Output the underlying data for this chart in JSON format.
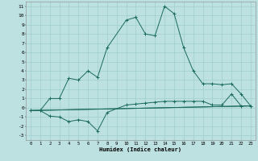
{
  "xlabel": "Humidex (Indice chaleur)",
  "bg_color": "#bde0e0",
  "grid_color": "#9ecece",
  "line_color": "#1a6b5a",
  "xlim": [
    -0.5,
    23.5
  ],
  "ylim": [
    -3.5,
    11.5
  ],
  "xticks": [
    0,
    1,
    2,
    3,
    4,
    5,
    6,
    7,
    8,
    9,
    10,
    11,
    12,
    13,
    14,
    15,
    16,
    17,
    18,
    19,
    20,
    21,
    22,
    23
  ],
  "yticks": [
    -3,
    -2,
    -1,
    0,
    1,
    2,
    3,
    4,
    5,
    6,
    7,
    8,
    9,
    10,
    11
  ],
  "curve1_x": [
    0,
    1,
    2,
    3,
    4,
    5,
    6,
    7,
    8,
    10,
    11,
    12,
    13,
    14,
    15,
    16,
    17,
    18,
    19,
    20,
    21,
    22,
    23
  ],
  "curve1_y": [
    -0.3,
    -0.3,
    1.0,
    1.0,
    3.2,
    3.0,
    4.0,
    3.3,
    6.5,
    9.5,
    9.8,
    8.0,
    7.8,
    11.0,
    10.2,
    6.5,
    4.0,
    2.6,
    2.6,
    2.5,
    2.6,
    1.5,
    0.2
  ],
  "curve2_x": [
    0,
    1,
    2,
    3,
    4,
    5,
    6,
    7,
    8,
    10,
    11,
    12,
    13,
    14,
    15,
    16,
    17,
    18,
    19,
    20,
    21,
    22,
    23
  ],
  "curve2_y": [
    -0.3,
    -0.3,
    -0.9,
    -1.0,
    -1.5,
    -1.3,
    -1.5,
    -2.5,
    -0.5,
    0.3,
    0.4,
    0.5,
    0.6,
    0.7,
    0.7,
    0.7,
    0.7,
    0.7,
    0.3,
    0.3,
    1.5,
    0.2,
    0.2
  ],
  "curve3_x": [
    0,
    23
  ],
  "curve3_y": [
    -0.3,
    0.2
  ],
  "curve4_x": [
    0,
    23
  ],
  "curve4_y": [
    -0.3,
    0.2
  ]
}
